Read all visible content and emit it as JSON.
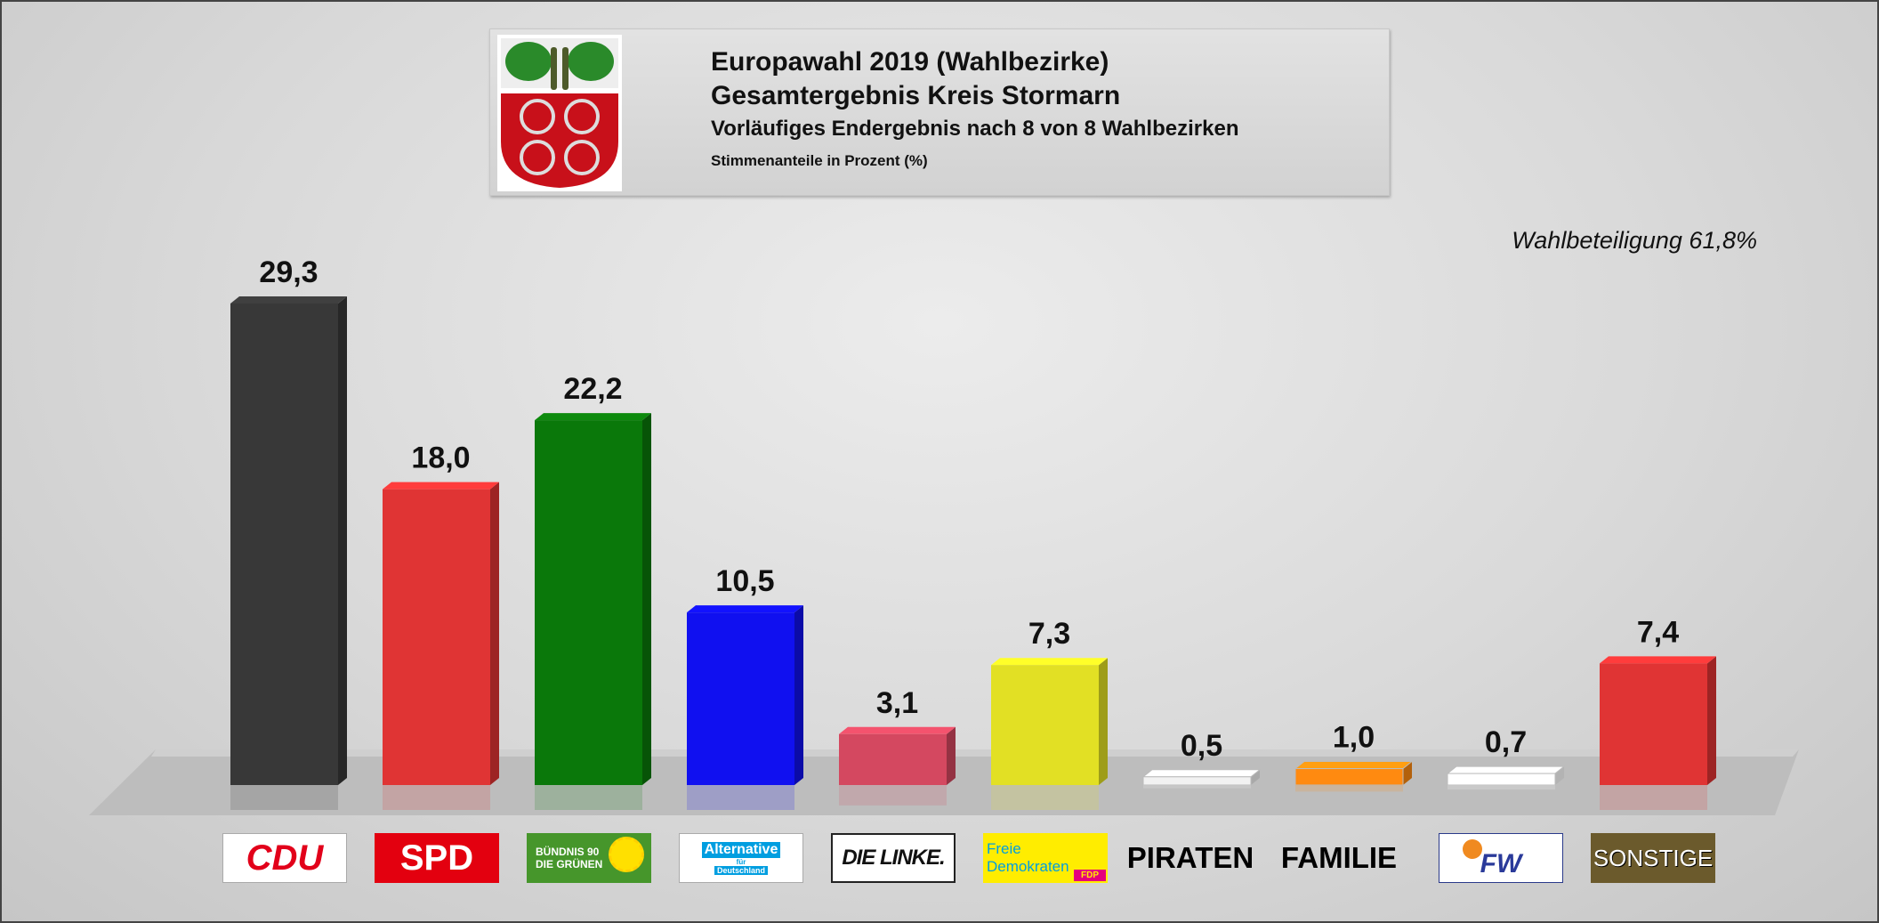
{
  "header": {
    "title_line1": "Europawahl 2019 (Wahlbezirke)",
    "title_line2": "Gesamtergebnis Kreis Stormarn",
    "title_line3": "Vorläufiges Endergebnis nach 8 von 8 Wahlbezirken",
    "title_line4": "Stimmenanteile in Prozent (%)"
  },
  "turnout": "Wahlbeteiligung 61,8%",
  "chart_data": {
    "type": "bar",
    "title": "Europawahl 2019 (Wahlbezirke) – Gesamtergebnis Kreis Stormarn",
    "ylabel": "Stimmenanteile in Prozent (%)",
    "xlabel": "",
    "ylim": [
      0,
      30
    ],
    "grid": false,
    "categories": [
      "CDU",
      "SPD",
      "GRÜNE",
      "AfD",
      "DIE LINKE",
      "FDP",
      "PIRATEN",
      "FAMILIE",
      "FW",
      "SONSTIGE"
    ],
    "values": [
      29.3,
      18.0,
      22.2,
      10.5,
      3.1,
      7.3,
      0.5,
      1.0,
      0.7,
      7.4
    ],
    "value_labels": [
      "29,3",
      "18,0",
      "22,2",
      "10,5",
      "3,1",
      "7,3",
      "0,5",
      "1,0",
      "0,7",
      "7,4"
    ],
    "colors": [
      "#383838",
      "#e03434",
      "#0a780a",
      "#1010f0",
      "#d44860",
      "#e2e024",
      "#f2f2f2",
      "#ff8a10",
      "#ffffff",
      "#e03434"
    ]
  },
  "logos": {
    "cdu": "CDU",
    "spd": "SPD",
    "gruene_1": "BÜNDNIS 90",
    "gruene_2": "DIE GRÜNEN",
    "afd_1": "Alternative",
    "afd_2": "für",
    "afd_3": "Deutschland",
    "linke": "DIE LINKE.",
    "fdp_1": "Freie",
    "fdp_2": "Demokraten",
    "fdp_3": "FDP",
    "piraten": "PIRATEN",
    "familie": "FAMILIE",
    "fw": "FW",
    "sonstige": "SONSTIGE"
  }
}
